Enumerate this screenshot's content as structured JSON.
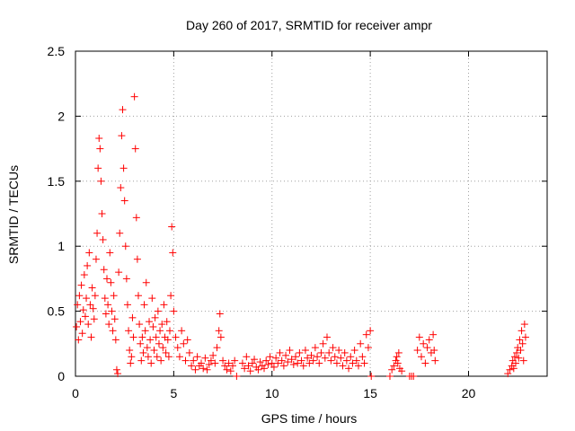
{
  "chart_data": {
    "type": "scatter",
    "title": "Day 260 of 2017, SRMTID for receiver ampr",
    "xlabel": "GPS time / hours",
    "ylabel": "SRMTID / TECUs",
    "xlim": [
      0,
      24
    ],
    "ylim": [
      0,
      2.5
    ],
    "x_ticks": [
      0,
      5,
      10,
      15,
      20
    ],
    "x_tick_labels": [
      "0",
      "5",
      "10",
      "15",
      "20"
    ],
    "y_ticks": [
      0,
      0.5,
      1,
      1.5,
      2,
      2.5
    ],
    "y_tick_labels": [
      "0",
      "0.5",
      "1",
      "1.5",
      "2",
      "2.5"
    ],
    "grid": true,
    "marker": "+",
    "color": "#ff0000",
    "series": [
      {
        "name": "SRMTID",
        "points": [
          [
            0.05,
            0.38
          ],
          [
            0.1,
            0.55
          ],
          [
            0.15,
            0.28
          ],
          [
            0.2,
            0.62
          ],
          [
            0.25,
            0.42
          ],
          [
            0.3,
            0.7
          ],
          [
            0.35,
            0.33
          ],
          [
            0.4,
            0.51
          ],
          [
            0.45,
            0.78
          ],
          [
            0.5,
            0.46
          ],
          [
            0.55,
            0.6
          ],
          [
            0.6,
            0.85
          ],
          [
            0.65,
            0.4
          ],
          [
            0.7,
            0.95
          ],
          [
            0.75,
            0.55
          ],
          [
            0.8,
            0.3
          ],
          [
            0.85,
            0.68
          ],
          [
            0.9,
            0.52
          ],
          [
            0.95,
            0.44
          ],
          [
            1.0,
            0.62
          ],
          [
            1.05,
            0.9
          ],
          [
            1.1,
            1.1
          ],
          [
            1.15,
            1.6
          ],
          [
            1.2,
            1.83
          ],
          [
            1.25,
            1.75
          ],
          [
            1.3,
            1.5
          ],
          [
            1.35,
            1.25
          ],
          [
            1.4,
            1.05
          ],
          [
            1.45,
            0.82
          ],
          [
            1.5,
            0.6
          ],
          [
            1.55,
            0.48
          ],
          [
            1.6,
            0.75
          ],
          [
            1.65,
            0.55
          ],
          [
            1.7,
            0.4
          ],
          [
            1.75,
            0.95
          ],
          [
            1.8,
            0.72
          ],
          [
            1.85,
            0.5
          ],
          [
            1.9,
            0.35
          ],
          [
            1.95,
            0.62
          ],
          [
            2.0,
            0.44
          ],
          [
            2.05,
            0.28
          ],
          [
            2.1,
            0.05
          ],
          [
            2.15,
            0.02
          ],
          [
            2.2,
            0.8
          ],
          [
            2.25,
            1.1
          ],
          [
            2.3,
            1.45
          ],
          [
            2.35,
            1.85
          ],
          [
            2.4,
            2.05
          ],
          [
            2.45,
            1.6
          ],
          [
            2.5,
            1.35
          ],
          [
            2.55,
            1.0
          ],
          [
            2.6,
            0.75
          ],
          [
            2.65,
            0.55
          ],
          [
            2.7,
            0.35
          ],
          [
            2.75,
            0.2
          ],
          [
            2.8,
            0.1
          ],
          [
            2.85,
            0.15
          ],
          [
            2.9,
            0.45
          ],
          [
            2.95,
            0.3
          ],
          [
            3.0,
            2.15
          ],
          [
            3.05,
            1.75
          ],
          [
            3.1,
            1.22
          ],
          [
            3.15,
            0.9
          ],
          [
            3.2,
            0.62
          ],
          [
            3.25,
            0.4
          ],
          [
            3.3,
            0.25
          ],
          [
            3.35,
            0.12
          ],
          [
            3.4,
            0.3
          ],
          [
            3.45,
            0.18
          ],
          [
            3.5,
            0.55
          ],
          [
            3.55,
            0.35
          ],
          [
            3.6,
            0.72
          ],
          [
            3.65,
            0.22
          ],
          [
            3.7,
            0.15
          ],
          [
            3.75,
            0.42
          ],
          [
            3.8,
            0.28
          ],
          [
            3.85,
            0.1
          ],
          [
            3.9,
            0.6
          ],
          [
            3.95,
            0.38
          ],
          [
            4.0,
            0.2
          ],
          [
            4.05,
            0.45
          ],
          [
            4.1,
            0.3
          ],
          [
            4.15,
            0.15
          ],
          [
            4.2,
            0.5
          ],
          [
            4.25,
            0.25
          ],
          [
            4.3,
            0.35
          ],
          [
            4.35,
            0.12
          ],
          [
            4.4,
            0.4
          ],
          [
            4.45,
            0.22
          ],
          [
            4.5,
            0.55
          ],
          [
            4.55,
            0.3
          ],
          [
            4.6,
            0.18
          ],
          [
            4.65,
            0.42
          ],
          [
            4.7,
            0.28
          ],
          [
            4.75,
            0.15
          ],
          [
            4.8,
            0.35
          ],
          [
            4.85,
            0.62
          ],
          [
            4.9,
            1.15
          ],
          [
            4.95,
            0.95
          ],
          [
            5.0,
            0.5
          ],
          [
            5.1,
            0.3
          ],
          [
            5.2,
            0.22
          ],
          [
            5.3,
            0.15
          ],
          [
            5.4,
            0.35
          ],
          [
            5.5,
            0.25
          ],
          [
            5.6,
            0.12
          ],
          [
            5.7,
            0.28
          ],
          [
            5.8,
            0.18
          ],
          [
            5.9,
            0.08
          ],
          [
            6.0,
            0.12
          ],
          [
            6.1,
            0.05
          ],
          [
            6.2,
            0.15
          ],
          [
            6.3,
            0.08
          ],
          [
            6.4,
            0.1
          ],
          [
            6.5,
            0.06
          ],
          [
            6.6,
            0.14
          ],
          [
            6.7,
            0.05
          ],
          [
            6.8,
            0.09
          ],
          [
            6.9,
            0.12
          ],
          [
            7.0,
            0.16
          ],
          [
            7.1,
            0.1
          ],
          [
            7.2,
            0.22
          ],
          [
            7.3,
            0.35
          ],
          [
            7.35,
            0.48
          ],
          [
            7.4,
            0.3
          ],
          [
            7.5,
            0.12
          ],
          [
            7.6,
            0.08
          ],
          [
            7.7,
            0.05
          ],
          [
            7.8,
            0.1
          ],
          [
            7.9,
            0.04
          ],
          [
            8.0,
            0.08
          ],
          [
            8.1,
            0.12
          ],
          [
            8.2,
            0.0
          ],
          [
            8.5,
            0.1
          ],
          [
            8.6,
            0.06
          ],
          [
            8.7,
            0.15
          ],
          [
            8.8,
            0.08
          ],
          [
            8.9,
            0.04
          ],
          [
            9.0,
            0.1
          ],
          [
            9.1,
            0.13
          ],
          [
            9.2,
            0.07
          ],
          [
            9.3,
            0.05
          ],
          [
            9.4,
            0.11
          ],
          [
            9.5,
            0.08
          ],
          [
            9.6,
            0.06
          ],
          [
            9.7,
            0.12
          ],
          [
            9.8,
            0.09
          ],
          [
            9.9,
            0.15
          ],
          [
            10.0,
            0.1
          ],
          [
            10.1,
            0.07
          ],
          [
            10.2,
            0.14
          ],
          [
            10.3,
            0.1
          ],
          [
            10.4,
            0.18
          ],
          [
            10.5,
            0.12
          ],
          [
            10.6,
            0.08
          ],
          [
            10.7,
            0.16
          ],
          [
            10.8,
            0.11
          ],
          [
            10.9,
            0.2
          ],
          [
            11.0,
            0.13
          ],
          [
            11.1,
            0.09
          ],
          [
            11.2,
            0.15
          ],
          [
            11.3,
            0.1
          ],
          [
            11.4,
            0.18
          ],
          [
            11.5,
            0.12
          ],
          [
            11.6,
            0.08
          ],
          [
            11.7,
            0.2
          ],
          [
            11.8,
            0.14
          ],
          [
            11.9,
            0.1
          ],
          [
            12.0,
            0.16
          ],
          [
            12.1,
            0.12
          ],
          [
            12.2,
            0.22
          ],
          [
            12.3,
            0.15
          ],
          [
            12.4,
            0.1
          ],
          [
            12.5,
            0.18
          ],
          [
            12.6,
            0.25
          ],
          [
            12.7,
            0.14
          ],
          [
            12.8,
            0.3
          ],
          [
            12.9,
            0.18
          ],
          [
            13.0,
            0.12
          ],
          [
            13.1,
            0.22
          ],
          [
            13.2,
            0.15
          ],
          [
            13.3,
            0.1
          ],
          [
            13.4,
            0.2
          ],
          [
            13.5,
            0.14
          ],
          [
            13.6,
            0.08
          ],
          [
            13.7,
            0.18
          ],
          [
            13.8,
            0.12
          ],
          [
            13.9,
            0.06
          ],
          [
            14.0,
            0.15
          ],
          [
            14.1,
            0.1
          ],
          [
            14.2,
            0.2
          ],
          [
            14.3,
            0.12
          ],
          [
            14.4,
            0.08
          ],
          [
            14.5,
            0.25
          ],
          [
            14.6,
            0.15
          ],
          [
            14.7,
            0.1
          ],
          [
            14.8,
            0.32
          ],
          [
            14.9,
            0.22
          ],
          [
            15.0,
            0.35
          ],
          [
            15.05,
            0.0
          ],
          [
            16.0,
            0.0
          ],
          [
            16.1,
            0.05
          ],
          [
            16.2,
            0.08
          ],
          [
            16.3,
            0.12
          ],
          [
            16.35,
            0.15
          ],
          [
            16.4,
            0.1
          ],
          [
            16.45,
            0.18
          ],
          [
            16.5,
            0.06
          ],
          [
            16.6,
            0.04
          ],
          [
            17.0,
            0.0
          ],
          [
            17.1,
            0.0
          ],
          [
            17.2,
            0.0
          ],
          [
            17.4,
            0.2
          ],
          [
            17.5,
            0.3
          ],
          [
            17.6,
            0.15
          ],
          [
            17.7,
            0.25
          ],
          [
            17.8,
            0.1
          ],
          [
            17.9,
            0.22
          ],
          [
            18.0,
            0.28
          ],
          [
            18.1,
            0.18
          ],
          [
            18.2,
            0.32
          ],
          [
            18.25,
            0.2
          ],
          [
            18.3,
            0.12
          ],
          [
            22.0,
            0.02
          ],
          [
            22.1,
            0.05
          ],
          [
            22.2,
            0.08
          ],
          [
            22.25,
            0.12
          ],
          [
            22.3,
            0.06
          ],
          [
            22.35,
            0.15
          ],
          [
            22.4,
            0.1
          ],
          [
            22.45,
            0.18
          ],
          [
            22.5,
            0.22
          ],
          [
            22.55,
            0.14
          ],
          [
            22.6,
            0.28
          ],
          [
            22.65,
            0.2
          ],
          [
            22.7,
            0.35
          ],
          [
            22.75,
            0.25
          ],
          [
            22.8,
            0.12
          ],
          [
            22.85,
            0.4
          ],
          [
            22.9,
            0.3
          ]
        ]
      }
    ]
  }
}
